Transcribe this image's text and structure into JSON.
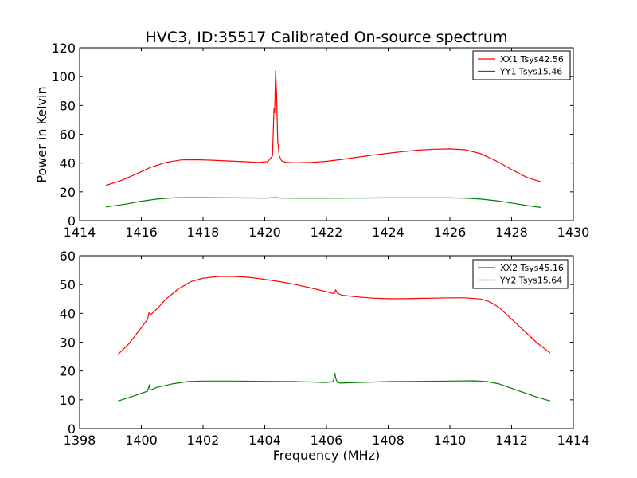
{
  "figure": {
    "title": "HVC3, ID:35517 Calibrated On-source spectrum",
    "xlabel": "Frequency (MHz)",
    "ylabel": "Power in Kelvin"
  },
  "colors": {
    "xx": "#ff0000",
    "yy": "#008000"
  },
  "chart_data": [
    {
      "type": "line",
      "title": "HVC3, ID:35517 Calibrated On-source spectrum",
      "xlabel": "",
      "ylabel": "Power in Kelvin",
      "xlim": [
        1414,
        1430
      ],
      "ylim": [
        0,
        120
      ],
      "xticks": [
        1414,
        1416,
        1418,
        1420,
        1422,
        1424,
        1426,
        1428,
        1430
      ],
      "yticks": [
        0,
        20,
        40,
        60,
        80,
        100,
        120
      ],
      "grid": false,
      "legend_position": "top-right",
      "series": [
        {
          "name": "XX1 Tsys42.56",
          "color": "#ff0000",
          "x": [
            1414.85,
            1415.3,
            1415.8,
            1416.3,
            1416.8,
            1417.3,
            1417.8,
            1418.3,
            1418.8,
            1419.3,
            1419.8,
            1420.1,
            1420.25,
            1420.3,
            1420.32,
            1420.35,
            1420.38,
            1420.42,
            1420.47,
            1420.55,
            1420.7,
            1421.0,
            1421.5,
            1422.0,
            1422.5,
            1423.0,
            1423.5,
            1424.0,
            1424.5,
            1425.0,
            1425.5,
            1426.0,
            1426.5,
            1427.0,
            1427.5,
            1428.0,
            1428.5,
            1428.95
          ],
          "values": [
            24.5,
            27.5,
            32.0,
            37.0,
            40.5,
            42.2,
            42.3,
            42.0,
            41.5,
            41.0,
            40.5,
            41.0,
            45.0,
            78.0,
            75.0,
            104.0,
            90.0,
            55.0,
            45.0,
            41.5,
            40.5,
            40.2,
            40.5,
            41.2,
            42.5,
            44.0,
            45.5,
            46.8,
            48.0,
            49.0,
            49.6,
            49.8,
            49.2,
            46.5,
            41.5,
            35.5,
            30.0,
            27.0
          ]
        },
        {
          "name": "YY1 Tsys15.46",
          "color": "#008000",
          "x": [
            1414.85,
            1415.5,
            1416.0,
            1416.5,
            1417.0,
            1417.5,
            1418.0,
            1419.0,
            1420.0,
            1420.35,
            1420.5,
            1421.0,
            1422.0,
            1423.0,
            1424.0,
            1425.0,
            1426.0,
            1426.5,
            1427.0,
            1427.5,
            1428.0,
            1428.5,
            1428.95
          ],
          "values": [
            9.5,
            11.5,
            13.5,
            15.0,
            15.8,
            16.0,
            16.0,
            15.8,
            15.7,
            16.0,
            15.7,
            15.6,
            15.6,
            15.7,
            15.8,
            15.8,
            15.8,
            15.6,
            15.0,
            13.8,
            12.3,
            10.5,
            9.2
          ]
        }
      ]
    },
    {
      "type": "line",
      "title": "",
      "xlabel": "Frequency (MHz)",
      "ylabel": "",
      "xlim": [
        1398,
        1414
      ],
      "ylim": [
        0,
        60
      ],
      "xticks": [
        1398,
        1400,
        1402,
        1404,
        1406,
        1408,
        1410,
        1412,
        1414
      ],
      "yticks": [
        0,
        10,
        20,
        30,
        40,
        50,
        60
      ],
      "grid": false,
      "legend_position": "top-right",
      "series": [
        {
          "name": "XX2 Tsys45.16",
          "color": "#ff0000",
          "x": [
            1399.25,
            1399.6,
            1400.0,
            1400.2,
            1400.25,
            1400.3,
            1400.35,
            1400.5,
            1400.8,
            1401.2,
            1401.6,
            1402.0,
            1402.5,
            1403.0,
            1403.5,
            1404.0,
            1404.5,
            1405.0,
            1405.5,
            1406.0,
            1406.25,
            1406.3,
            1406.35,
            1406.5,
            1407.0,
            1407.5,
            1408.0,
            1408.5,
            1409.0,
            1409.5,
            1410.0,
            1410.5,
            1411.0,
            1411.3,
            1411.6,
            1412.0,
            1412.4,
            1412.8,
            1413.25
          ],
          "values": [
            25.8,
            29.5,
            35.0,
            38.0,
            40.2,
            39.5,
            40.0,
            41.5,
            45.0,
            48.5,
            51.0,
            52.2,
            52.8,
            52.8,
            52.5,
            51.8,
            51.0,
            50.0,
            48.8,
            47.5,
            46.8,
            48.2,
            47.0,
            46.3,
            45.7,
            45.3,
            45.1,
            45.1,
            45.2,
            45.3,
            45.4,
            45.4,
            45.0,
            44.0,
            42.0,
            38.0,
            34.0,
            30.0,
            26.2
          ]
        },
        {
          "name": "YY2 Tsys15.64",
          "color": "#008000",
          "x": [
            1399.25,
            1399.8,
            1400.2,
            1400.26,
            1400.28,
            1400.32,
            1400.5,
            1401.0,
            1401.5,
            1402.0,
            1403.0,
            1404.0,
            1405.0,
            1406.0,
            1406.22,
            1406.27,
            1406.3,
            1406.35,
            1406.45,
            1407.0,
            1408.0,
            1409.0,
            1410.0,
            1410.8,
            1411.2,
            1411.6,
            1412.0,
            1412.4,
            1412.8,
            1413.25
          ],
          "values": [
            9.6,
            11.5,
            13.0,
            15.2,
            13.8,
            13.5,
            14.3,
            15.5,
            16.3,
            16.5,
            16.5,
            16.4,
            16.3,
            16.0,
            16.3,
            19.2,
            17.5,
            16.0,
            15.8,
            16.0,
            16.3,
            16.4,
            16.5,
            16.6,
            16.3,
            15.5,
            14.0,
            12.5,
            11.0,
            9.6
          ]
        }
      ]
    }
  ]
}
